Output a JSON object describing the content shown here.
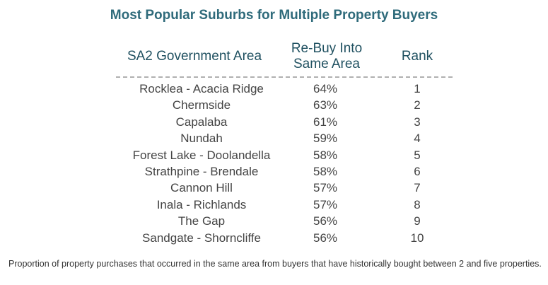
{
  "title": "Most Popular Suburbs for Multiple Property Buyers",
  "table": {
    "headers": {
      "area": "SA2 Government Area",
      "rebuy_line1": "Re-Buy Into",
      "rebuy_line2": "Same Area",
      "rank": "Rank"
    },
    "rows": [
      {
        "area": "Rocklea - Acacia Ridge",
        "rebuy": "64%",
        "rank": "1"
      },
      {
        "area": "Chermside",
        "rebuy": "63%",
        "rank": "2"
      },
      {
        "area": "Capalaba",
        "rebuy": "61%",
        "rank": "3"
      },
      {
        "area": "Nundah",
        "rebuy": "59%",
        "rank": "4"
      },
      {
        "area": "Forest Lake - Doolandella",
        "rebuy": "58%",
        "rank": "5"
      },
      {
        "area": "Strathpine - Brendale",
        "rebuy": "58%",
        "rank": "6"
      },
      {
        "area": "Cannon Hill",
        "rebuy": "57%",
        "rank": "7"
      },
      {
        "area": "Inala - Richlands",
        "rebuy": "57%",
        "rank": "8"
      },
      {
        "area": "The Gap",
        "rebuy": "56%",
        "rank": "9"
      },
      {
        "area": "Sandgate - Shorncliffe",
        "rebuy": "56%",
        "rank": "10"
      }
    ]
  },
  "footnote": "Proportion of property purchases that occurred in the same area from buyers that have historically bought between 2 and five properties.",
  "colors": {
    "title": "#2f6b7b",
    "header": "#1f5060",
    "cell": "#444444",
    "divider": "#b0b0b0"
  }
}
